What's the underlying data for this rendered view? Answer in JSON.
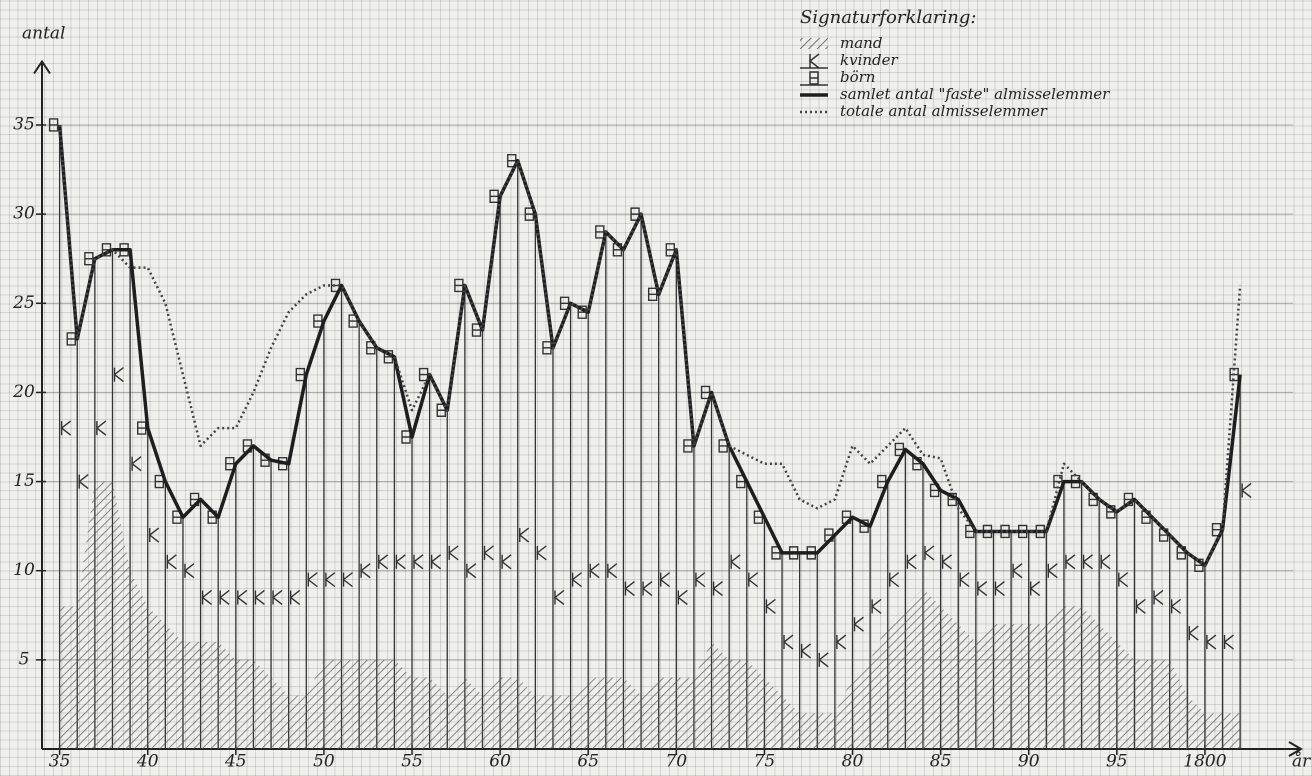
{
  "chart_data": {
    "type": "combo",
    "y_label": "antal",
    "x_label": "år",
    "legend_title": "Signaturforklaring:",
    "xlim": [
      1734,
      1805
    ],
    "ylim": [
      0,
      38
    ],
    "xticks": [
      {
        "value": 1735,
        "label": "35"
      },
      {
        "value": 1740,
        "label": "40"
      },
      {
        "value": 1745,
        "label": "45"
      },
      {
        "value": 1750,
        "label": "50"
      },
      {
        "value": 1755,
        "label": "55"
      },
      {
        "value": 1760,
        "label": "60"
      },
      {
        "value": 1765,
        "label": "65"
      },
      {
        "value": 1770,
        "label": "70"
      },
      {
        "value": 1775,
        "label": "75"
      },
      {
        "value": 1780,
        "label": "80"
      },
      {
        "value": 1785,
        "label": "85"
      },
      {
        "value": 1790,
        "label": "90"
      },
      {
        "value": 1795,
        "label": "95"
      },
      1800
    ],
    "yticks": [
      5,
      10,
      15,
      20,
      25,
      30,
      35
    ],
    "grid": true,
    "legend": "upper right",
    "x": [
      1735,
      1736,
      1737,
      1738,
      1739,
      1740,
      1741,
      1742,
      1743,
      1744,
      1745,
      1746,
      1747,
      1748,
      1749,
      1750,
      1751,
      1752,
      1753,
      1754,
      1755,
      1756,
      1757,
      1758,
      1759,
      1760,
      1761,
      1762,
      1763,
      1764,
      1765,
      1766,
      1767,
      1768,
      1769,
      1770,
      1771,
      1772,
      1773,
      1774,
      1775,
      1776,
      1777,
      1778,
      1779,
      1780,
      1781,
      1782,
      1783,
      1784,
      1785,
      1786,
      1787,
      1788,
      1789,
      1790,
      1791,
      1792,
      1793,
      1794,
      1795,
      1796,
      1797,
      1798,
      1799,
      1800,
      1801,
      1802
    ],
    "series": [
      {
        "name": "mand",
        "style": "hatch",
        "color": "#555555",
        "values": [
          8,
          8,
          15,
          15,
          10,
          8,
          7,
          6,
          6,
          6,
          5,
          5,
          4,
          3,
          3,
          5,
          5,
          5,
          5,
          5,
          4,
          4,
          3,
          4,
          3,
          4,
          4,
          3,
          3,
          3,
          4,
          4,
          4,
          3,
          4,
          4,
          4,
          6,
          5,
          5,
          4,
          3,
          2,
          2,
          2,
          4,
          5,
          7,
          8,
          9,
          8,
          7,
          6,
          7,
          7,
          7,
          7,
          8,
          8,
          7,
          6,
          5,
          5,
          5,
          3,
          2,
          2,
          2
        ]
      },
      {
        "name": "kvinder",
        "style": "K",
        "color": "#333333",
        "values": [
          10,
          7,
          3,
          6,
          6,
          4,
          3.5,
          4,
          2.5,
          2.5,
          3.5,
          3.5,
          4.5,
          5.5,
          6.5,
          4.5,
          4.5,
          5,
          5.5,
          5.5,
          6.5,
          6.5,
          8,
          6,
          8,
          6.5,
          8,
          8,
          5.5,
          6.5,
          6,
          6,
          5,
          6,
          5.5,
          4.5,
          5.5,
          3,
          5.5,
          4.5,
          4,
          3,
          3.5,
          3,
          4,
          3,
          3,
          2.5,
          2.5,
          2,
          2.5,
          2.5,
          3,
          2,
          3,
          2,
          3,
          2.5,
          2.5,
          3.5,
          3.5,
          3,
          3.5,
          3,
          3.5,
          4,
          4,
          12.5
        ]
      },
      {
        "name": "börn",
        "style": "B",
        "color": "#333333",
        "values": [
          17,
          8,
          9.5,
          7,
          12,
          6,
          4.5,
          3,
          5.5,
          4.5,
          7.5,
          8.5,
          7.7,
          7.5,
          11.5,
          14.5,
          16.5,
          14,
          12,
          11.5,
          7,
          10.5,
          8,
          16,
          12.5,
          20.5,
          21,
          19,
          14,
          15.5,
          14.5,
          19,
          19,
          21,
          16,
          19.5,
          7.5,
          11,
          6.5,
          5.5,
          5,
          5,
          5.5,
          6,
          6,
          6,
          4.5,
          5.5,
          6.3,
          5,
          4,
          4.5,
          3.2,
          3.2,
          2.2,
          3.2,
          2.2,
          4.5,
          4.5,
          3.5,
          3.8,
          6,
          4.5,
          4,
          4.5,
          4.3,
          6.3,
          6.5
        ]
      },
      {
        "name": "samlet antal \"faste\" almisselemmer",
        "style": "line",
        "color": "#1e1e1e",
        "values": [
          35,
          23,
          27.5,
          28,
          28,
          18,
          15,
          13,
          14,
          13,
          16,
          17,
          16.2,
          16,
          21,
          24,
          26,
          24,
          22.5,
          22,
          17.5,
          21,
          19,
          26,
          23.5,
          31,
          33,
          30,
          22.5,
          25,
          24.5,
          29,
          28,
          30,
          25.5,
          28,
          17,
          20,
          17,
          15,
          13,
          11,
          11,
          11,
          12,
          13,
          12.5,
          15,
          16.8,
          16,
          14.5,
          14,
          12.2,
          12.2,
          12.2,
          12.2,
          12.2,
          15,
          15,
          14,
          13.3,
          14,
          13,
          12,
          11,
          10.3,
          12.3,
          21
        ]
      },
      {
        "name": "totale antal almisselemmer",
        "style": "dotted",
        "color": "#444444",
        "values": [
          35,
          23,
          27.5,
          28,
          27,
          27,
          25,
          21,
          17,
          18,
          18,
          20,
          22.5,
          24.5,
          25.5,
          26,
          26,
          24,
          22.5,
          22,
          19,
          21,
          19,
          26,
          23.5,
          31,
          33,
          30,
          22.5,
          25,
          24.5,
          29,
          28,
          30,
          25.5,
          28,
          17,
          20,
          17,
          16.5,
          16,
          16,
          14,
          13.5,
          14,
          17,
          16,
          17,
          18,
          16.5,
          16.3,
          13.5,
          12.2,
          12.2,
          12.2,
          12.2,
          12.2,
          16,
          15,
          14,
          13.3,
          14,
          13,
          12,
          11,
          10.3,
          12.3,
          26
        ]
      }
    ]
  }
}
